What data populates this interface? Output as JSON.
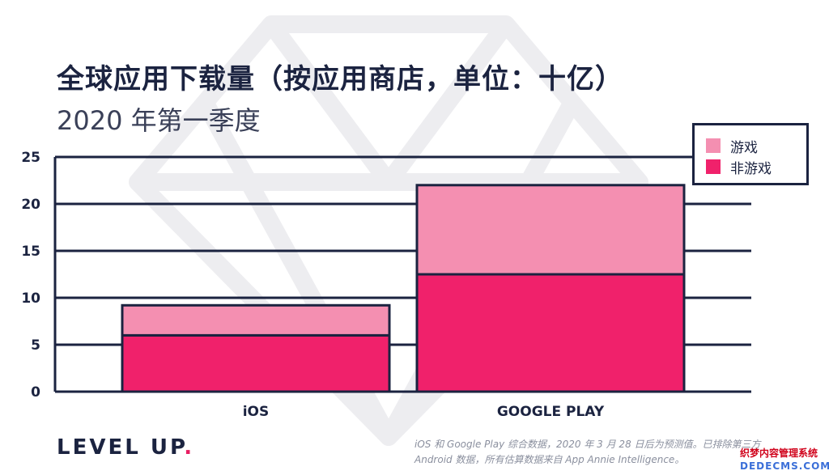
{
  "header": {
    "title": "全球应用下载量（按应用商店，单位：十亿）",
    "subtitle": "2020 年第一季度"
  },
  "legend": {
    "items": [
      {
        "label": "游戏",
        "color": "#f48fb1"
      },
      {
        "label": "非游戏",
        "color": "#f0216b"
      }
    ]
  },
  "chart_data": {
    "type": "bar",
    "stacked": true,
    "categories": [
      "iOS",
      "GOOGLE PLAY"
    ],
    "series": [
      {
        "name": "非游戏",
        "values": [
          6.0,
          12.5
        ],
        "color": "#f0216b"
      },
      {
        "name": "游戏",
        "values": [
          3.2,
          9.5
        ],
        "color": "#f48fb1"
      }
    ],
    "ylim": [
      0,
      25
    ],
    "yticks": [
      0,
      5,
      10,
      15,
      20,
      25
    ],
    "grid": true,
    "legend_position": "top-right"
  },
  "brand": {
    "name": "LEVEL UP",
    "dot": "."
  },
  "footnote": {
    "line1": "iOS 和 Google Play 综合数据，2020 年 3 月 28 日后为预测值。已排除第三方",
    "line2": "Android 数据，所有估算数据来自 App Annie Intelligence。"
  },
  "site_mark": {
    "cn": "织梦内容管理系统",
    "en": "DEDECMS.COM"
  },
  "colors": {
    "navy": "#1b2340",
    "pink_dark": "#f0216b",
    "pink_light": "#f48fb1",
    "watermark": "#ececee"
  }
}
